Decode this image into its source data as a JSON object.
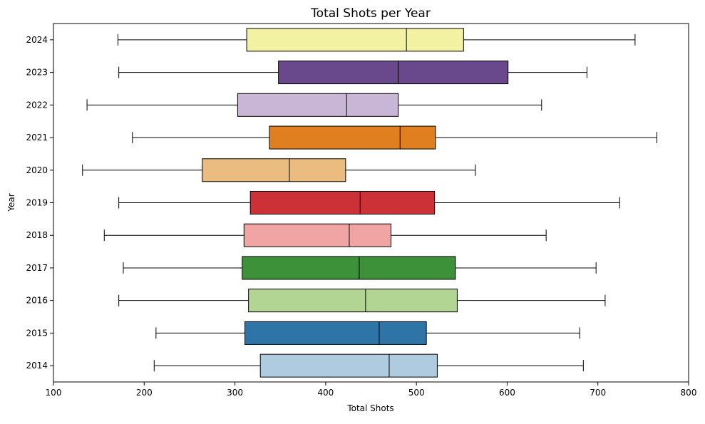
{
  "chart_data": {
    "type": "boxplot",
    "orientation": "horizontal",
    "title": "Total Shots per Year",
    "xlabel": "Total Shots",
    "ylabel": "Year",
    "xlim": [
      100,
      800
    ],
    "xticks": [
      100,
      200,
      300,
      400,
      500,
      600,
      700,
      800
    ],
    "grid": false,
    "categories": [
      "2024",
      "2023",
      "2022",
      "2021",
      "2020",
      "2019",
      "2018",
      "2017",
      "2016",
      "2015",
      "2014"
    ],
    "boxes": [
      {
        "year": "2024",
        "whisker_low": 171,
        "q1": 313,
        "median": 489,
        "q3": 552,
        "whisker_high": 741,
        "color": "#f2f2a2"
      },
      {
        "year": "2023",
        "whisker_low": 172,
        "q1": 348,
        "median": 480,
        "q3": 601,
        "whisker_high": 688,
        "color": "#6a488c"
      },
      {
        "year": "2022",
        "whisker_low": 137,
        "q1": 303,
        "median": 423,
        "q3": 480,
        "whisker_high": 638,
        "color": "#c9b5d5"
      },
      {
        "year": "2021",
        "whisker_low": 187,
        "q1": 338,
        "median": 482,
        "q3": 521,
        "whisker_high": 765,
        "color": "#e07f20"
      },
      {
        "year": "2020",
        "whisker_low": 132,
        "q1": 264,
        "median": 360,
        "q3": 422,
        "whisker_high": 565,
        "color": "#ebbc7f"
      },
      {
        "year": "2019",
        "whisker_low": 172,
        "q1": 317,
        "median": 438,
        "q3": 520,
        "whisker_high": 724,
        "color": "#cb3136"
      },
      {
        "year": "2018",
        "whisker_low": 156,
        "q1": 310,
        "median": 426,
        "q3": 472,
        "whisker_high": 643,
        "color": "#f0a5a4"
      },
      {
        "year": "2017",
        "whisker_low": 177,
        "q1": 308,
        "median": 437,
        "q3": 543,
        "whisker_high": 698,
        "color": "#3d9239"
      },
      {
        "year": "2016",
        "whisker_low": 172,
        "q1": 315,
        "median": 444,
        "q3": 545,
        "whisker_high": 708,
        "color": "#b3d593"
      },
      {
        "year": "2015",
        "whisker_low": 213,
        "q1": 311,
        "median": 459,
        "q3": 511,
        "whisker_high": 680,
        "color": "#2f74a7"
      },
      {
        "year": "2014",
        "whisker_low": 211,
        "q1": 328,
        "median": 470,
        "q3": 523,
        "whisker_high": 684,
        "color": "#afcbdf"
      }
    ]
  }
}
